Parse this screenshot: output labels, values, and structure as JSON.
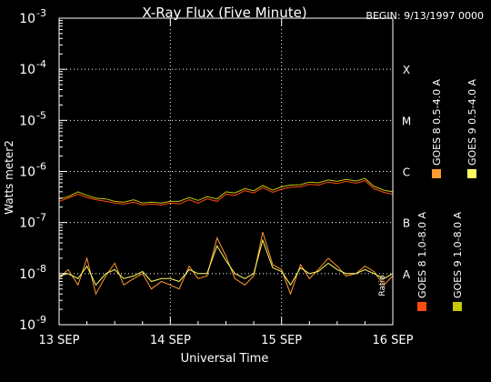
{
  "chart_data": {
    "type": "line",
    "title": "X-Ray Flux (Five Minute)",
    "begin_label": "BEGIN: 9/13/1997 0000",
    "xlabel": "Universal Time",
    "ylabel": "Watts meter2",
    "x_ticks": [
      "13 SEP",
      "14 SEP",
      "15 SEP",
      "16 SEP"
    ],
    "x_range_days": [
      13,
      16
    ],
    "y_scale": "log",
    "ylim": [
      1e-09,
      0.001
    ],
    "y_tick_labels": [
      {
        "value": 1e-09,
        "mant": "10",
        "exp": "-9"
      },
      {
        "value": 1e-08,
        "mant": "10",
        "exp": "-8"
      },
      {
        "value": 1e-07,
        "mant": "10",
        "exp": "-7"
      },
      {
        "value": 1e-06,
        "mant": "10",
        "exp": "-6"
      },
      {
        "value": 1e-05,
        "mant": "10",
        "exp": "-5"
      },
      {
        "value": 0.0001,
        "mant": "10",
        "exp": "-4"
      },
      {
        "value": 0.001,
        "mant": "10",
        "exp": "-3"
      }
    ],
    "flare_classes": [
      {
        "label": "A",
        "value": 1e-08
      },
      {
        "label": "B",
        "value": 1e-07
      },
      {
        "label": "C",
        "value": 1e-06
      },
      {
        "label": "M",
        "value": 1e-05
      },
      {
        "label": "X",
        "value": 0.0001
      }
    ],
    "right_axis_label": "Ratio",
    "grid": {
      "horizontal_dotted": [
        1e-08,
        1e-07,
        1e-06,
        1e-05,
        0.0001
      ],
      "vertical_dotted": [
        14,
        15
      ]
    },
    "legend_placement": "right, vertical",
    "legend": [
      {
        "text": "GOES 8 1.0-8.0 A",
        "color": "#ff4a10"
      },
      {
        "text": "GOES 8 0.5-4.0 A",
        "color": "#ff9a30"
      },
      {
        "text": "GOES 9 1.0-8.0 A",
        "color": "#c8c800"
      },
      {
        "text": "GOES 9 0.5-4.0 A",
        "color": "#ffff60"
      }
    ],
    "series": [
      {
        "name": "GOES 8 1.0-8.0 A",
        "color": "#ff4a10",
        "x": [
          13.0,
          13.08,
          13.17,
          13.25,
          13.33,
          13.42,
          13.5,
          13.58,
          13.67,
          13.75,
          13.83,
          13.92,
          14.0,
          14.08,
          14.17,
          14.25,
          14.33,
          14.42,
          14.5,
          14.58,
          14.67,
          14.75,
          14.83,
          14.92,
          15.0,
          15.08,
          15.17,
          15.25,
          15.33,
          15.42,
          15.5,
          15.58,
          15.67,
          15.75,
          15.83,
          15.92,
          16.0
        ],
        "y": [
          2.6e-07,
          3e-07,
          3.6e-07,
          3.1e-07,
          2.8e-07,
          2.6e-07,
          2.4e-07,
          2.3e-07,
          2.5e-07,
          2.2e-07,
          2.3e-07,
          2.2e-07,
          2.4e-07,
          2.3e-07,
          2.8e-07,
          2.4e-07,
          2.9e-07,
          2.6e-07,
          3.6e-07,
          3.4e-07,
          4.2e-07,
          3.8e-07,
          4.8e-07,
          3.9e-07,
          4.5e-07,
          4.9e-07,
          5e-07,
          5.6e-07,
          5.4e-07,
          6.2e-07,
          5.8e-07,
          6.4e-07,
          5.9e-07,
          6.6e-07,
          4.6e-07,
          3.9e-07,
          3.6e-07
        ]
      },
      {
        "name": "GOES 8 0.5-4.0 A",
        "color": "#ff9a30",
        "x": [
          13.0,
          13.08,
          13.17,
          13.25,
          13.33,
          13.42,
          13.5,
          13.58,
          13.67,
          13.75,
          13.83,
          13.92,
          14.0,
          14.08,
          14.17,
          14.25,
          14.33,
          14.42,
          14.5,
          14.58,
          14.67,
          14.75,
          14.83,
          14.92,
          15.0,
          15.08,
          15.17,
          15.25,
          15.33,
          15.42,
          15.5,
          15.58,
          15.67,
          15.75,
          15.83,
          15.92,
          16.0
        ],
        "y": [
          8e-09,
          1.2e-08,
          6e-09,
          2e-08,
          4e-09,
          9e-09,
          1.6e-08,
          6e-09,
          8e-09,
          1e-08,
          5e-09,
          7e-09,
          6e-09,
          5e-09,
          1.4e-08,
          8e-09,
          9e-09,
          5e-08,
          2.2e-08,
          8e-09,
          6e-09,
          9e-09,
          6.5e-08,
          1.5e-08,
          1.2e-08,
          4e-09,
          1.5e-08,
          8e-09,
          1.2e-08,
          2e-08,
          1.4e-08,
          9e-09,
          1e-08,
          1.4e-08,
          1.1e-08,
          6e-09,
          9e-09
        ]
      },
      {
        "name": "GOES 9 1.0-8.0 A",
        "color": "#c8c800",
        "x": [
          13.0,
          13.08,
          13.17,
          13.25,
          13.33,
          13.42,
          13.5,
          13.58,
          13.67,
          13.75,
          13.83,
          13.92,
          14.0,
          14.08,
          14.17,
          14.25,
          14.33,
          14.42,
          14.5,
          14.58,
          14.67,
          14.75,
          14.83,
          14.92,
          15.0,
          15.08,
          15.17,
          15.25,
          15.33,
          15.42,
          15.5,
          15.58,
          15.67,
          15.75,
          15.83,
          15.92,
          16.0
        ],
        "y": [
          2.9e-07,
          3.2e-07,
          4e-07,
          3.4e-07,
          3e-07,
          2.9e-07,
          2.6e-07,
          2.5e-07,
          2.8e-07,
          2.4e-07,
          2.5e-07,
          2.4e-07,
          2.6e-07,
          2.6e-07,
          3.1e-07,
          2.7e-07,
          3.2e-07,
          2.9e-07,
          4e-07,
          3.8e-07,
          4.6e-07,
          4.2e-07,
          5.3e-07,
          4.3e-07,
          5e-07,
          5.4e-07,
          5.5e-07,
          6.2e-07,
          6e-07,
          6.8e-07,
          6.4e-07,
          7e-07,
          6.5e-07,
          7.3e-07,
          5.1e-07,
          4.3e-07,
          4e-07
        ]
      },
      {
        "name": "GOES 9 0.5-4.0 A",
        "color": "#ffff60",
        "x": [
          13.0,
          13.08,
          13.17,
          13.25,
          13.33,
          13.42,
          13.5,
          13.58,
          13.67,
          13.75,
          13.83,
          13.92,
          14.0,
          14.08,
          14.17,
          14.25,
          14.33,
          14.42,
          14.5,
          14.58,
          14.67,
          14.75,
          14.83,
          14.92,
          15.0,
          15.08,
          15.17,
          15.25,
          15.33,
          15.42,
          15.5,
          15.58,
          15.67,
          15.75,
          15.83,
          15.92,
          16.0
        ],
        "y": [
          9e-09,
          1e-08,
          8e-09,
          1.4e-08,
          6e-09,
          1e-08,
          1.2e-08,
          8e-09,
          9e-09,
          1.1e-08,
          7e-09,
          8e-09,
          8e-09,
          7e-09,
          1.2e-08,
          1e-08,
          1e-08,
          3.5e-08,
          1.8e-08,
          1e-08,
          8e-09,
          1e-08,
          4.5e-08,
          1.3e-08,
          1.1e-08,
          6e-09,
          1.3e-08,
          1e-08,
          1.1e-08,
          1.6e-08,
          1.2e-08,
          1e-08,
          1e-08,
          1.2e-08,
          1e-08,
          8e-09,
          1e-08
        ]
      }
    ]
  }
}
